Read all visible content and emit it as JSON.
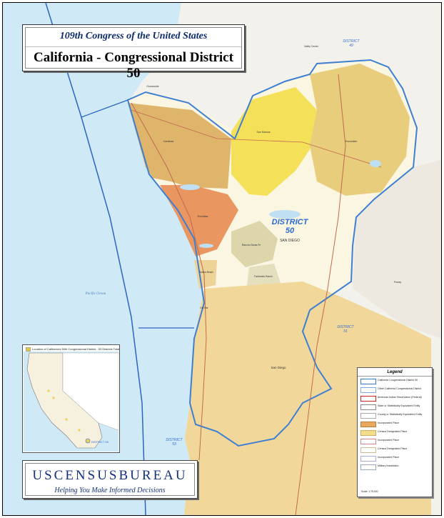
{
  "title": {
    "line1": "109th Congress of the United States",
    "line2": "California -  Congressional District 50"
  },
  "map_labels": {
    "district50_line1": "DISTRICT",
    "district50_line2": "50",
    "district49_line1": "DISTRICT",
    "district49_line2": "49",
    "district51_line1": "DISTRICT",
    "district51_line2": "51",
    "district53_line1": "DISTRICT",
    "district53_line2": "53",
    "pacific_ocean": "Pacific Ocean",
    "san_diego_upper": "SAN DIEGO",
    "san_diego_city": "San Diego",
    "carlsbad": "Carlsbad",
    "encinitas": "Encinitas",
    "oceanside": "Oceanside",
    "san_marcos": "San Marcos",
    "escondido": "Escondido",
    "rancho_santa_fe": "Rancho Santa Fe",
    "del_mar": "Del Mar",
    "fairbanks_ranch": "Fairbanks Ranch",
    "solana_beach": "Solana Beach",
    "poway": "Poway",
    "valley_center": "Valley Center"
  },
  "inset": {
    "caption": "Location of California's 50th Congressional District - 53 Districts Total",
    "district_label": "DISTRICT 50"
  },
  "brand": {
    "name": "USCENSUSBUREAU",
    "tagline": "Helping You Make Informed Decisions"
  },
  "legend": {
    "title": "Legend",
    "items": [
      {
        "label": "California Congressional District 50",
        "color": "#ffffff",
        "border": "#3a78c8"
      },
      {
        "label": "Other California Congressional District",
        "color": "#ffffff",
        "border": "#7fa9dc"
      },
      {
        "label": "American Indian Reservation (Federal)",
        "color": "#ffffff",
        "border": "#c22"
      },
      {
        "label": "State or Statistically Equivalent Entity",
        "color": "#ffffff",
        "border": "#888"
      },
      {
        "label": "County or Statistically Equivalent Entity",
        "color": "#ffffff",
        "border": "#aaa"
      },
      {
        "label": "Incorporated Place",
        "color": "#e8a860",
        "border": "#b58040"
      },
      {
        "label": "Census Designated Place",
        "color": "#f3dc8c",
        "border": "#c9b060"
      },
      {
        "label": "Incorporated Place",
        "color": "#ffffff",
        "border": "#c88"
      },
      {
        "label": "Census Designated Place",
        "color": "#ffffff",
        "border": "#cb9"
      },
      {
        "label": "Incorporated Place",
        "color": "#ffffff",
        "border": "#aac"
      },
      {
        "label": "Military Installation",
        "color": "#ffffff",
        "border": "#9ab"
      }
    ],
    "scale": "Scale: 1:75,000"
  }
}
